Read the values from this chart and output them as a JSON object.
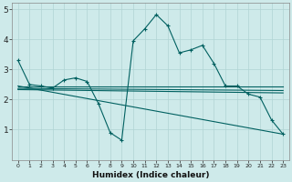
{
  "xlabel": "Humidex (Indice chaleur)",
  "background_color": "#ceeaea",
  "grid_color": "#b0d4d4",
  "line_color": "#006060",
  "xlim": [
    -0.5,
    23.5
  ],
  "ylim": [
    0,
    5.2
  ],
  "xticks": [
    0,
    1,
    2,
    3,
    4,
    5,
    6,
    7,
    8,
    9,
    10,
    11,
    12,
    13,
    14,
    15,
    16,
    17,
    18,
    19,
    20,
    21,
    22,
    23
  ],
  "yticks": [
    1,
    2,
    3,
    4,
    5
  ],
  "main_x": [
    0,
    1,
    2,
    3,
    4,
    5,
    6,
    7,
    8,
    9,
    10,
    11,
    12,
    13,
    14,
    15,
    16,
    17,
    18,
    19,
    20,
    21,
    22,
    23
  ],
  "main_y": [
    3.3,
    2.5,
    2.45,
    2.38,
    2.65,
    2.72,
    2.6,
    1.85,
    0.9,
    0.65,
    3.95,
    4.35,
    4.82,
    4.45,
    3.55,
    3.65,
    3.8,
    3.2,
    2.45,
    2.45,
    2.18,
    2.08,
    1.32,
    0.85
  ],
  "flat_lines": [
    {
      "x0": 0,
      "x1": 23,
      "y0": 2.42,
      "y1": 2.42
    },
    {
      "x0": 0,
      "x1": 23,
      "y0": 2.37,
      "y1": 2.3
    },
    {
      "x0": 0,
      "x1": 23,
      "y0": 2.33,
      "y1": 2.22
    }
  ],
  "declining_line": {
    "x0": 0,
    "x1": 23,
    "y0": 2.45,
    "y1": 0.85
  }
}
